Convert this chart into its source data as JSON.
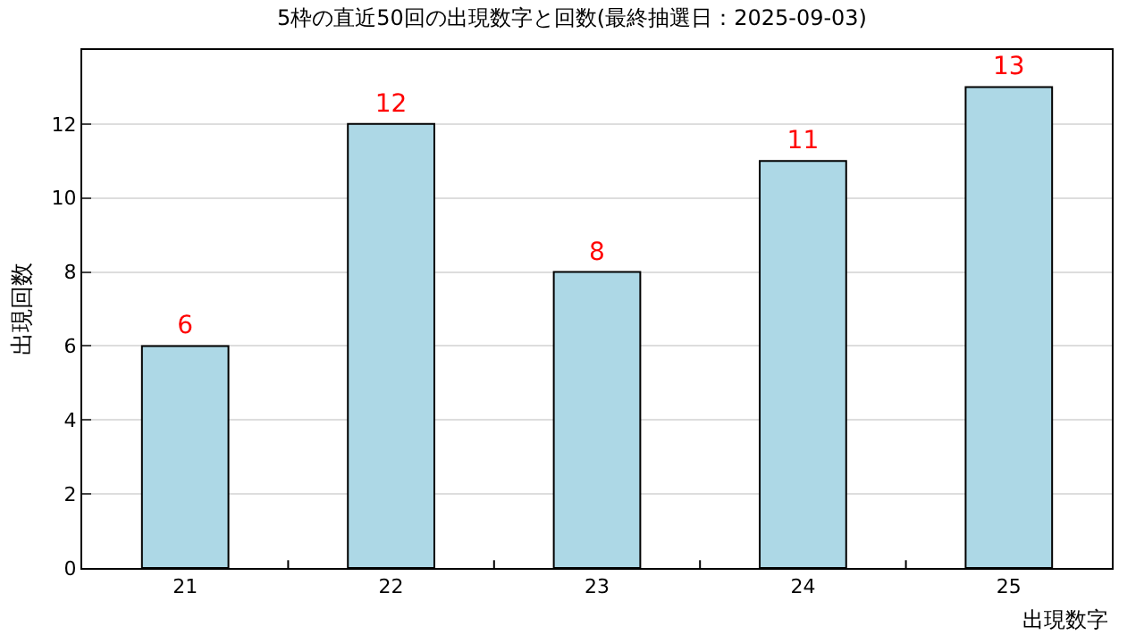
{
  "chart_data": {
    "type": "bar",
    "title": "5枠の直近50回の出現数字と回数(最終抽選日：2025-09-03)",
    "xlabel": "出現数字",
    "ylabel": "出現回数",
    "categories": [
      "21",
      "22",
      "23",
      "24",
      "25"
    ],
    "values": [
      6,
      12,
      8,
      11,
      13
    ],
    "color": "#add8e6",
    "data_labels": true,
    "ylim": [
      0,
      14
    ],
    "yticks": [
      0,
      2,
      4,
      6,
      8,
      10,
      12
    ],
    "grid": "y",
    "legend": false
  }
}
